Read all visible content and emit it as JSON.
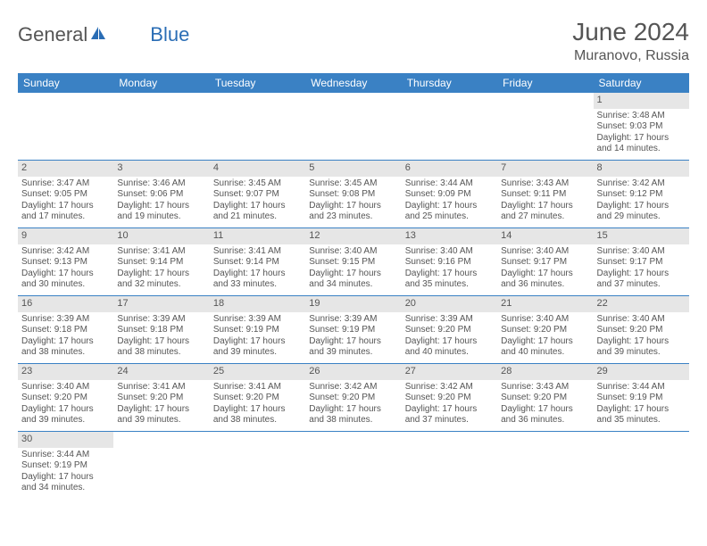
{
  "brand": {
    "part1": "General",
    "part2": "Blue",
    "accent_color": "#2a6db5",
    "text_color": "#555555"
  },
  "title": "June 2024",
  "location": "Muranovo, Russia",
  "colors": {
    "header_bg": "#3a81c4",
    "header_fg": "#ffffff",
    "daynum_bg": "#e6e6e6",
    "border": "#3a81c4",
    "text": "#555555",
    "page_bg": "#ffffff"
  },
  "fonts": {
    "title_size": 28,
    "location_size": 16,
    "header_size": 12,
    "body_size": 10
  },
  "day_names": [
    "Sunday",
    "Monday",
    "Tuesday",
    "Wednesday",
    "Thursday",
    "Friday",
    "Saturday"
  ],
  "weeks": [
    [
      null,
      null,
      null,
      null,
      null,
      null,
      {
        "n": "1",
        "sr": "Sunrise: 3:48 AM",
        "ss": "Sunset: 9:03 PM",
        "dl": "Daylight: 17 hours and 14 minutes."
      }
    ],
    [
      {
        "n": "2",
        "sr": "Sunrise: 3:47 AM",
        "ss": "Sunset: 9:05 PM",
        "dl": "Daylight: 17 hours and 17 minutes."
      },
      {
        "n": "3",
        "sr": "Sunrise: 3:46 AM",
        "ss": "Sunset: 9:06 PM",
        "dl": "Daylight: 17 hours and 19 minutes."
      },
      {
        "n": "4",
        "sr": "Sunrise: 3:45 AM",
        "ss": "Sunset: 9:07 PM",
        "dl": "Daylight: 17 hours and 21 minutes."
      },
      {
        "n": "5",
        "sr": "Sunrise: 3:45 AM",
        "ss": "Sunset: 9:08 PM",
        "dl": "Daylight: 17 hours and 23 minutes."
      },
      {
        "n": "6",
        "sr": "Sunrise: 3:44 AM",
        "ss": "Sunset: 9:09 PM",
        "dl": "Daylight: 17 hours and 25 minutes."
      },
      {
        "n": "7",
        "sr": "Sunrise: 3:43 AM",
        "ss": "Sunset: 9:11 PM",
        "dl": "Daylight: 17 hours and 27 minutes."
      },
      {
        "n": "8",
        "sr": "Sunrise: 3:42 AM",
        "ss": "Sunset: 9:12 PM",
        "dl": "Daylight: 17 hours and 29 minutes."
      }
    ],
    [
      {
        "n": "9",
        "sr": "Sunrise: 3:42 AM",
        "ss": "Sunset: 9:13 PM",
        "dl": "Daylight: 17 hours and 30 minutes."
      },
      {
        "n": "10",
        "sr": "Sunrise: 3:41 AM",
        "ss": "Sunset: 9:14 PM",
        "dl": "Daylight: 17 hours and 32 minutes."
      },
      {
        "n": "11",
        "sr": "Sunrise: 3:41 AM",
        "ss": "Sunset: 9:14 PM",
        "dl": "Daylight: 17 hours and 33 minutes."
      },
      {
        "n": "12",
        "sr": "Sunrise: 3:40 AM",
        "ss": "Sunset: 9:15 PM",
        "dl": "Daylight: 17 hours and 34 minutes."
      },
      {
        "n": "13",
        "sr": "Sunrise: 3:40 AM",
        "ss": "Sunset: 9:16 PM",
        "dl": "Daylight: 17 hours and 35 minutes."
      },
      {
        "n": "14",
        "sr": "Sunrise: 3:40 AM",
        "ss": "Sunset: 9:17 PM",
        "dl": "Daylight: 17 hours and 36 minutes."
      },
      {
        "n": "15",
        "sr": "Sunrise: 3:40 AM",
        "ss": "Sunset: 9:17 PM",
        "dl": "Daylight: 17 hours and 37 minutes."
      }
    ],
    [
      {
        "n": "16",
        "sr": "Sunrise: 3:39 AM",
        "ss": "Sunset: 9:18 PM",
        "dl": "Daylight: 17 hours and 38 minutes."
      },
      {
        "n": "17",
        "sr": "Sunrise: 3:39 AM",
        "ss": "Sunset: 9:18 PM",
        "dl": "Daylight: 17 hours and 38 minutes."
      },
      {
        "n": "18",
        "sr": "Sunrise: 3:39 AM",
        "ss": "Sunset: 9:19 PM",
        "dl": "Daylight: 17 hours and 39 minutes."
      },
      {
        "n": "19",
        "sr": "Sunrise: 3:39 AM",
        "ss": "Sunset: 9:19 PM",
        "dl": "Daylight: 17 hours and 39 minutes."
      },
      {
        "n": "20",
        "sr": "Sunrise: 3:39 AM",
        "ss": "Sunset: 9:20 PM",
        "dl": "Daylight: 17 hours and 40 minutes."
      },
      {
        "n": "21",
        "sr": "Sunrise: 3:40 AM",
        "ss": "Sunset: 9:20 PM",
        "dl": "Daylight: 17 hours and 40 minutes."
      },
      {
        "n": "22",
        "sr": "Sunrise: 3:40 AM",
        "ss": "Sunset: 9:20 PM",
        "dl": "Daylight: 17 hours and 39 minutes."
      }
    ],
    [
      {
        "n": "23",
        "sr": "Sunrise: 3:40 AM",
        "ss": "Sunset: 9:20 PM",
        "dl": "Daylight: 17 hours and 39 minutes."
      },
      {
        "n": "24",
        "sr": "Sunrise: 3:41 AM",
        "ss": "Sunset: 9:20 PM",
        "dl": "Daylight: 17 hours and 39 minutes."
      },
      {
        "n": "25",
        "sr": "Sunrise: 3:41 AM",
        "ss": "Sunset: 9:20 PM",
        "dl": "Daylight: 17 hours and 38 minutes."
      },
      {
        "n": "26",
        "sr": "Sunrise: 3:42 AM",
        "ss": "Sunset: 9:20 PM",
        "dl": "Daylight: 17 hours and 38 minutes."
      },
      {
        "n": "27",
        "sr": "Sunrise: 3:42 AM",
        "ss": "Sunset: 9:20 PM",
        "dl": "Daylight: 17 hours and 37 minutes."
      },
      {
        "n": "28",
        "sr": "Sunrise: 3:43 AM",
        "ss": "Sunset: 9:20 PM",
        "dl": "Daylight: 17 hours and 36 minutes."
      },
      {
        "n": "29",
        "sr": "Sunrise: 3:44 AM",
        "ss": "Sunset: 9:19 PM",
        "dl": "Daylight: 17 hours and 35 minutes."
      }
    ],
    [
      {
        "n": "30",
        "sr": "Sunrise: 3:44 AM",
        "ss": "Sunset: 9:19 PM",
        "dl": "Daylight: 17 hours and 34 minutes."
      },
      null,
      null,
      null,
      null,
      null,
      null
    ]
  ]
}
